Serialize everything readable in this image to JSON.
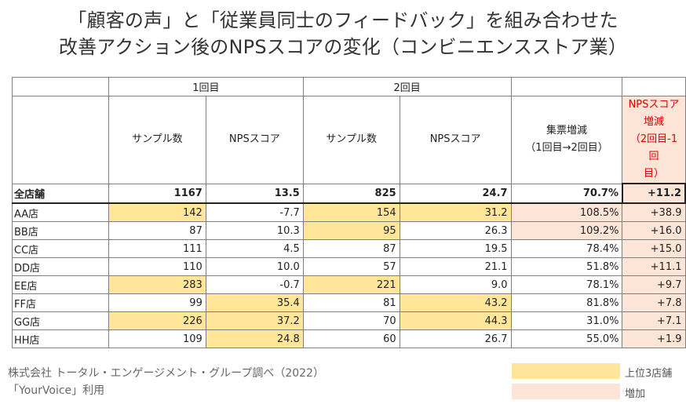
{
  "title_line1": "「顧客の声」と「従業員同士のフィードバック」を組み合わせた",
  "title_line2": "改善アクション後のNPSスコアの変化（コンビニエンスストア業）",
  "footer_line1": "株式会社 トータル・エンゲージメント・グループ調べ（2022）",
  "footer_line2": "「YourVoice」利用",
  "legend": {
    "top3_label": "上位3店舗",
    "increase_label": "増加",
    "top3_color": "#ffe699",
    "increase_color": "#fce4d6"
  },
  "chart_data": {
    "type": "table",
    "group_headers": {
      "round1": "1回目",
      "round2": "2回目"
    },
    "column_headers": {
      "sample1": "サンプル数",
      "nps1": "NPSスコア",
      "sample2": "サンプル数",
      "nps2": "NPSスコア",
      "growth_line1": "集票増減",
      "growth_line2": "（1回目→2回目）",
      "npsdiff_line1": "NPSスコア",
      "npsdiff_line2": "増減",
      "npsdiff_line3": "（2回目-1回",
      "npsdiff_line4": "目）"
    },
    "total": {
      "store": "全店舗",
      "sample1": "1167",
      "nps1": "13.5",
      "sample2": "825",
      "nps2": "24.7",
      "growth": "70.7%",
      "npsdiff": "+11.2"
    },
    "rows": [
      {
        "store": "AA店",
        "sample1": "142",
        "nps1": "-7.7",
        "sample2": "154",
        "nps2": "31.2",
        "growth": "108.5%",
        "npsdiff": "+38.9"
      },
      {
        "store": "BB店",
        "sample1": "87",
        "nps1": "10.3",
        "sample2": "95",
        "nps2": "26.3",
        "growth": "109.2%",
        "npsdiff": "+16.0"
      },
      {
        "store": "CC店",
        "sample1": "111",
        "nps1": "4.5",
        "sample2": "87",
        "nps2": "19.5",
        "growth": "78.4%",
        "npsdiff": "+15.0"
      },
      {
        "store": "DD店",
        "sample1": "110",
        "nps1": "10.0",
        "sample2": "57",
        "nps2": "21.1",
        "growth": "51.8%",
        "npsdiff": "+11.1"
      },
      {
        "store": "EE店",
        "sample1": "283",
        "nps1": "-0.7",
        "sample2": "221",
        "nps2": "9.0",
        "growth": "78.1%",
        "npsdiff": "+9.7"
      },
      {
        "store": "FF店",
        "sample1": "99",
        "nps1": "35.4",
        "sample2": "81",
        "nps2": "43.2",
        "growth": "81.8%",
        "npsdiff": "+7.8"
      },
      {
        "store": "GG店",
        "sample1": "226",
        "nps1": "37.2",
        "sample2": "70",
        "nps2": "44.3",
        "growth": "31.0%",
        "npsdiff": "+7.1"
      },
      {
        "store": "HH店",
        "sample1": "109",
        "nps1": "24.8",
        "sample2": "60",
        "nps2": "26.7",
        "growth": "55.0%",
        "npsdiff": "+1.9"
      }
    ]
  }
}
